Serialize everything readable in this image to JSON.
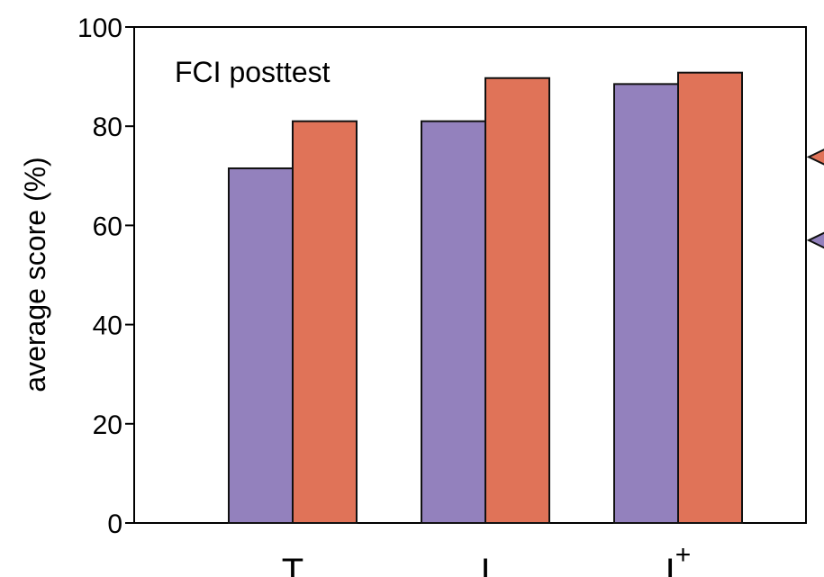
{
  "chart_data": {
    "type": "bar",
    "title": "FCI posttest",
    "xlabel": "",
    "ylabel": "average score (%)",
    "ylim": [
      0,
      100
    ],
    "yticks": [
      0,
      20,
      40,
      60,
      80,
      100
    ],
    "categories": [
      {
        "base": "T",
        "sup": ""
      },
      {
        "base": "I",
        "sup": ""
      },
      {
        "base": "I",
        "sup": "+"
      }
    ],
    "series": [
      {
        "color": "#9381BD",
        "values": [
          71.5,
          81,
          88.5
        ]
      },
      {
        "color": "#E07358",
        "values": [
          81,
          89.7,
          90.8
        ]
      }
    ],
    "markers": [
      {
        "series_index": 1,
        "value": 73.8
      },
      {
        "series_index": 0,
        "value": 57
      }
    ],
    "grid": false,
    "legend": "none"
  }
}
